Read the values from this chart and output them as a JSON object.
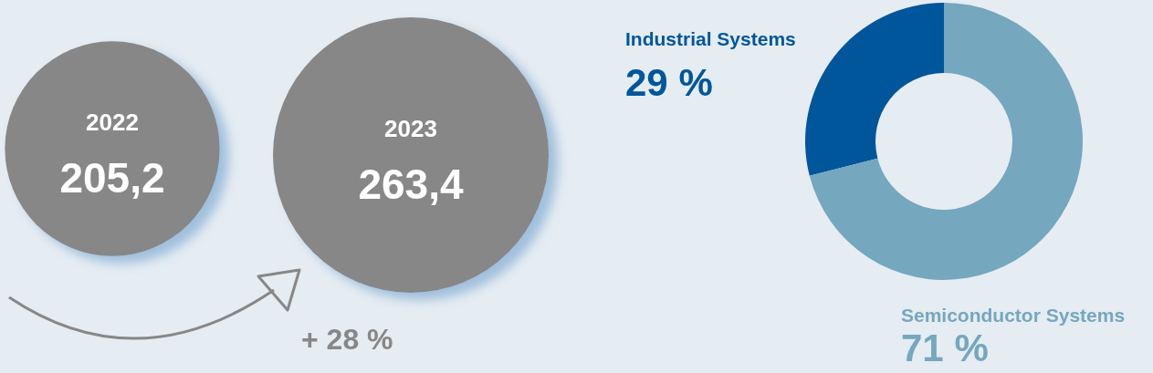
{
  "chart_data": [
    {
      "type": "other",
      "categories": [
        "2022",
        "2023"
      ],
      "values": [
        205.2,
        263.4
      ],
      "value_labels": [
        "205,2",
        "263,4"
      ],
      "color": "#878787",
      "annotations": [
        "+ 28 %"
      ]
    },
    {
      "type": "donut",
      "categories": [
        "Industrial Systems",
        "Semiconductor Systems"
      ],
      "values": [
        29,
        71
      ],
      "colors": [
        "#00569b",
        "#75a7be"
      ],
      "value_labels": [
        "29 %",
        "71 %"
      ]
    }
  ]
}
